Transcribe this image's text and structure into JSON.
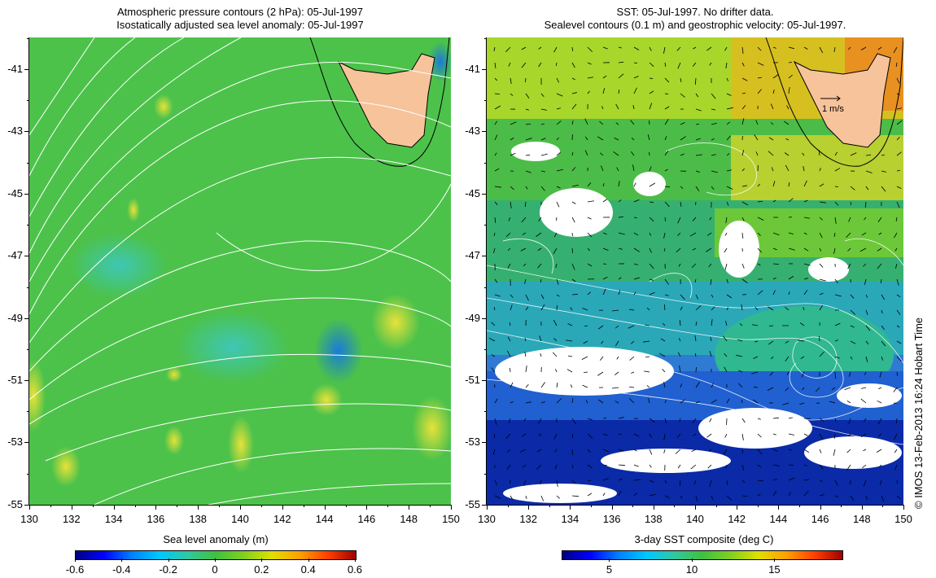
{
  "left_panel": {
    "title_line1": "Atmospheric pressure contours (2 hPa): 05-Jul-1997",
    "title_line2": "Isostatically adjusted sea level anomaly: 05-Jul-1997",
    "lat_labels": [
      "-41",
      "-43",
      "-45",
      "-47",
      "-49",
      "-51",
      "-53",
      "-55"
    ],
    "lon_labels": [
      "130",
      "132",
      "134",
      "136",
      "138",
      "140",
      "142",
      "144",
      "146",
      "148",
      "150"
    ],
    "colorbar_title": "Sea level anomaly (m)",
    "colorbar_ticks": [
      "-0.6",
      "-0.4",
      "-0.2",
      "0",
      "0.2",
      "0.4",
      "0.6"
    ],
    "land_color": "#f7c39a",
    "sea_color": "#4cc24a"
  },
  "right_panel": {
    "title_line1": "SST: 05-Jul-1997. No drifter data.",
    "title_line2": "Sealevel contours (0.1 m) and geostrophic velocity: 05-Jul-1997.",
    "lat_labels": [
      "-41",
      "-43",
      "-45",
      "-47",
      "-49",
      "-51",
      "-53",
      "-55"
    ],
    "lon_labels": [
      "130",
      "132",
      "134",
      "136",
      "138",
      "140",
      "142",
      "144",
      "146",
      "148",
      "150"
    ],
    "scale_label": "1 m/s",
    "colorbar_title": "3-day SST composite (deg C)",
    "colorbar_ticks": [
      "5",
      "10",
      "15"
    ]
  },
  "copyright": "© IMOS 13-Feb-2013 16:24 Hobart Time"
}
